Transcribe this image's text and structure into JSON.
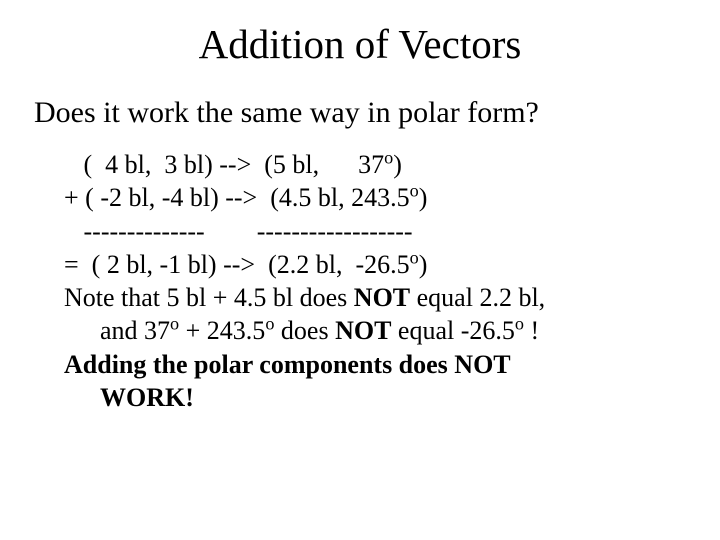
{
  "title": "Addition of Vectors",
  "question": "Does it work the same way in polar form?",
  "line1_pre": "   (  4 bl,  3 bl) -->  (5 bl,      37",
  "line1_sup": "o",
  "line1_post": ")",
  "line2_pre": "+ ( -2 bl, -4 bl) -->  (4.5 bl, 243.5",
  "line2_sup": "o",
  "line2_post": ")",
  "dashes": "   --------------        ------------------",
  "line3_pre": "=  ( 2 bl, -1 bl) -->  (2.2 bl,  -26.5",
  "line3_sup": "o",
  "line3_post": ")",
  "note_a": "Note that 5 bl + 4.5 bl does ",
  "note_not1": "NOT",
  "note_b": " equal 2.2 bl,",
  "note_c": "and  37",
  "note_c_sup": "o",
  "note_d": " + 243.5",
  "note_d_sup": "o",
  "note_e": " does ",
  "note_not2": "NOT",
  "note_f": " equal -26.5",
  "note_f_sup": "o",
  "note_g": " !",
  "conclusion1": "Adding the polar components does NOT ",
  "conclusion2": "WORK!"
}
